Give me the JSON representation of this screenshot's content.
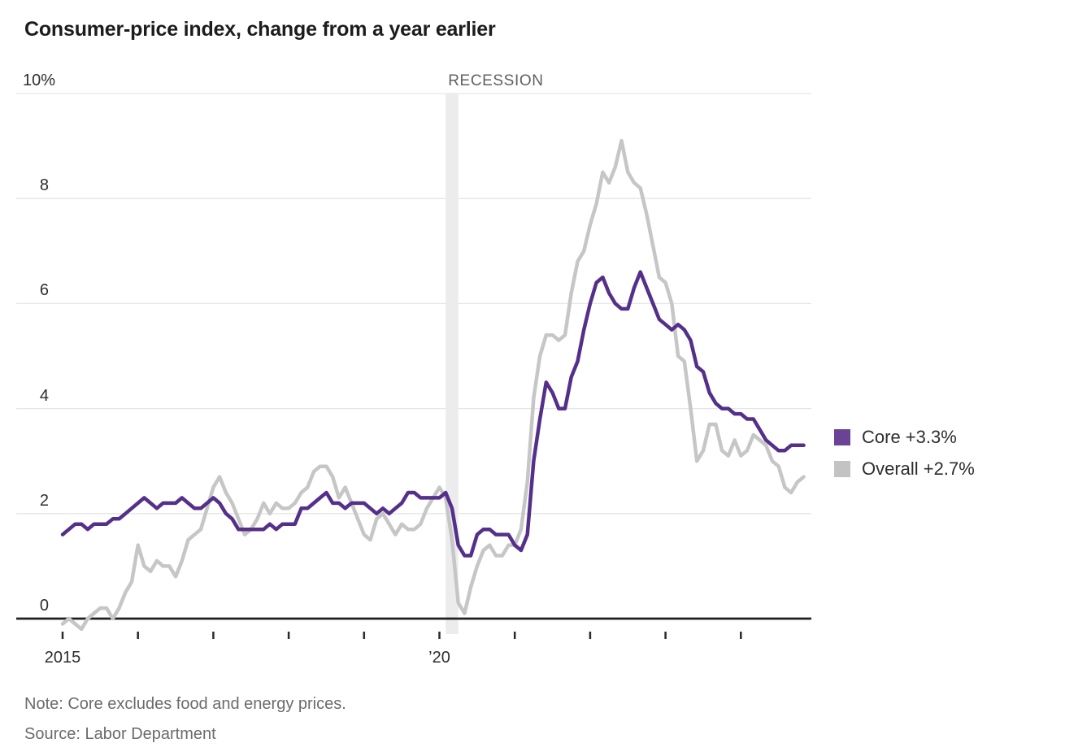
{
  "title": "Consumer-price index, change from a year earlier",
  "recession_label": "RECESSION",
  "legend": [
    {
      "label": "Core +3.3%",
      "color": "#6a4397"
    },
    {
      "label": "Overall +2.7%",
      "color": "#c3c3c3"
    }
  ],
  "note": "Note: Core excludes food and energy prices.",
  "source": "Source: Labor Department",
  "chart_data": {
    "type": "line",
    "title": "Consumer-price index, change from a year earlier",
    "x_start": "2015-01",
    "x_end": "2024-11",
    "x_frequency": "monthly",
    "grid": true,
    "legend_position": "right",
    "y_axis": {
      "tick_values": [
        10,
        8,
        6,
        4,
        2,
        0
      ],
      "tick_labels": [
        "10%",
        "8",
        "6",
        "4",
        "2",
        "0"
      ],
      "ylim": [
        -0.5,
        10
      ]
    },
    "x_axis": {
      "tick_years": [
        2015,
        2016,
        2017,
        2018,
        2019,
        2020,
        2021,
        2022,
        2023,
        2024
      ],
      "labels": [
        {
          "year": 2015,
          "text": "2015"
        },
        {
          "year": 2020,
          "text": "’20"
        }
      ]
    },
    "recession": {
      "from": "2020-02",
      "to": "2020-04"
    },
    "series": [
      {
        "name": "Core",
        "color": "#55308a",
        "end_value": 3.3,
        "values": [
          1.6,
          1.7,
          1.8,
          1.8,
          1.7,
          1.8,
          1.8,
          1.8,
          1.9,
          1.9,
          2.0,
          2.1,
          2.2,
          2.3,
          2.2,
          2.1,
          2.2,
          2.2,
          2.2,
          2.3,
          2.2,
          2.1,
          2.1,
          2.2,
          2.3,
          2.2,
          2.0,
          1.9,
          1.7,
          1.7,
          1.7,
          1.7,
          1.7,
          1.8,
          1.7,
          1.8,
          1.8,
          1.8,
          2.1,
          2.1,
          2.2,
          2.3,
          2.4,
          2.2,
          2.2,
          2.1,
          2.2,
          2.2,
          2.2,
          2.1,
          2.0,
          2.1,
          2.0,
          2.1,
          2.2,
          2.4,
          2.4,
          2.3,
          2.3,
          2.3,
          2.3,
          2.4,
          2.1,
          1.4,
          1.2,
          1.2,
          1.6,
          1.7,
          1.7,
          1.6,
          1.6,
          1.6,
          1.4,
          1.3,
          1.6,
          3.0,
          3.8,
          4.5,
          4.3,
          4.0,
          4.0,
          4.6,
          4.9,
          5.5,
          6.0,
          6.4,
          6.5,
          6.2,
          6.0,
          5.9,
          5.9,
          6.3,
          6.6,
          6.3,
          6.0,
          5.7,
          5.6,
          5.5,
          5.6,
          5.5,
          5.3,
          4.8,
          4.7,
          4.3,
          4.1,
          4.0,
          4.0,
          3.9,
          3.9,
          3.8,
          3.8,
          3.6,
          3.4,
          3.3,
          3.2,
          3.2,
          3.3,
          3.3,
          3.3
        ]
      },
      {
        "name": "Overall",
        "color": "#c6c6c6",
        "end_value": 2.7,
        "values": [
          -0.1,
          0.0,
          -0.1,
          -0.2,
          0.0,
          0.1,
          0.2,
          0.2,
          0.0,
          0.2,
          0.5,
          0.7,
          1.4,
          1.0,
          0.9,
          1.1,
          1.0,
          1.0,
          0.8,
          1.1,
          1.5,
          1.6,
          1.7,
          2.1,
          2.5,
          2.7,
          2.4,
          2.2,
          1.9,
          1.6,
          1.7,
          1.9,
          2.2,
          2.0,
          2.2,
          2.1,
          2.1,
          2.2,
          2.4,
          2.5,
          2.8,
          2.9,
          2.9,
          2.7,
          2.3,
          2.5,
          2.2,
          1.9,
          1.6,
          1.5,
          1.9,
          2.0,
          1.8,
          1.6,
          1.8,
          1.7,
          1.7,
          1.8,
          2.1,
          2.3,
          2.5,
          2.3,
          1.5,
          0.3,
          0.1,
          0.6,
          1.0,
          1.3,
          1.4,
          1.2,
          1.2,
          1.4,
          1.4,
          1.7,
          2.6,
          4.2,
          5.0,
          5.4,
          5.4,
          5.3,
          5.4,
          6.2,
          6.8,
          7.0,
          7.5,
          7.9,
          8.5,
          8.3,
          8.6,
          9.1,
          8.5,
          8.3,
          8.2,
          7.7,
          7.1,
          6.5,
          6.4,
          6.0,
          5.0,
          4.9,
          4.0,
          3.0,
          3.2,
          3.7,
          3.7,
          3.2,
          3.1,
          3.4,
          3.1,
          3.2,
          3.5,
          3.4,
          3.3,
          3.0,
          2.9,
          2.5,
          2.4,
          2.6,
          2.7
        ]
      }
    ]
  }
}
